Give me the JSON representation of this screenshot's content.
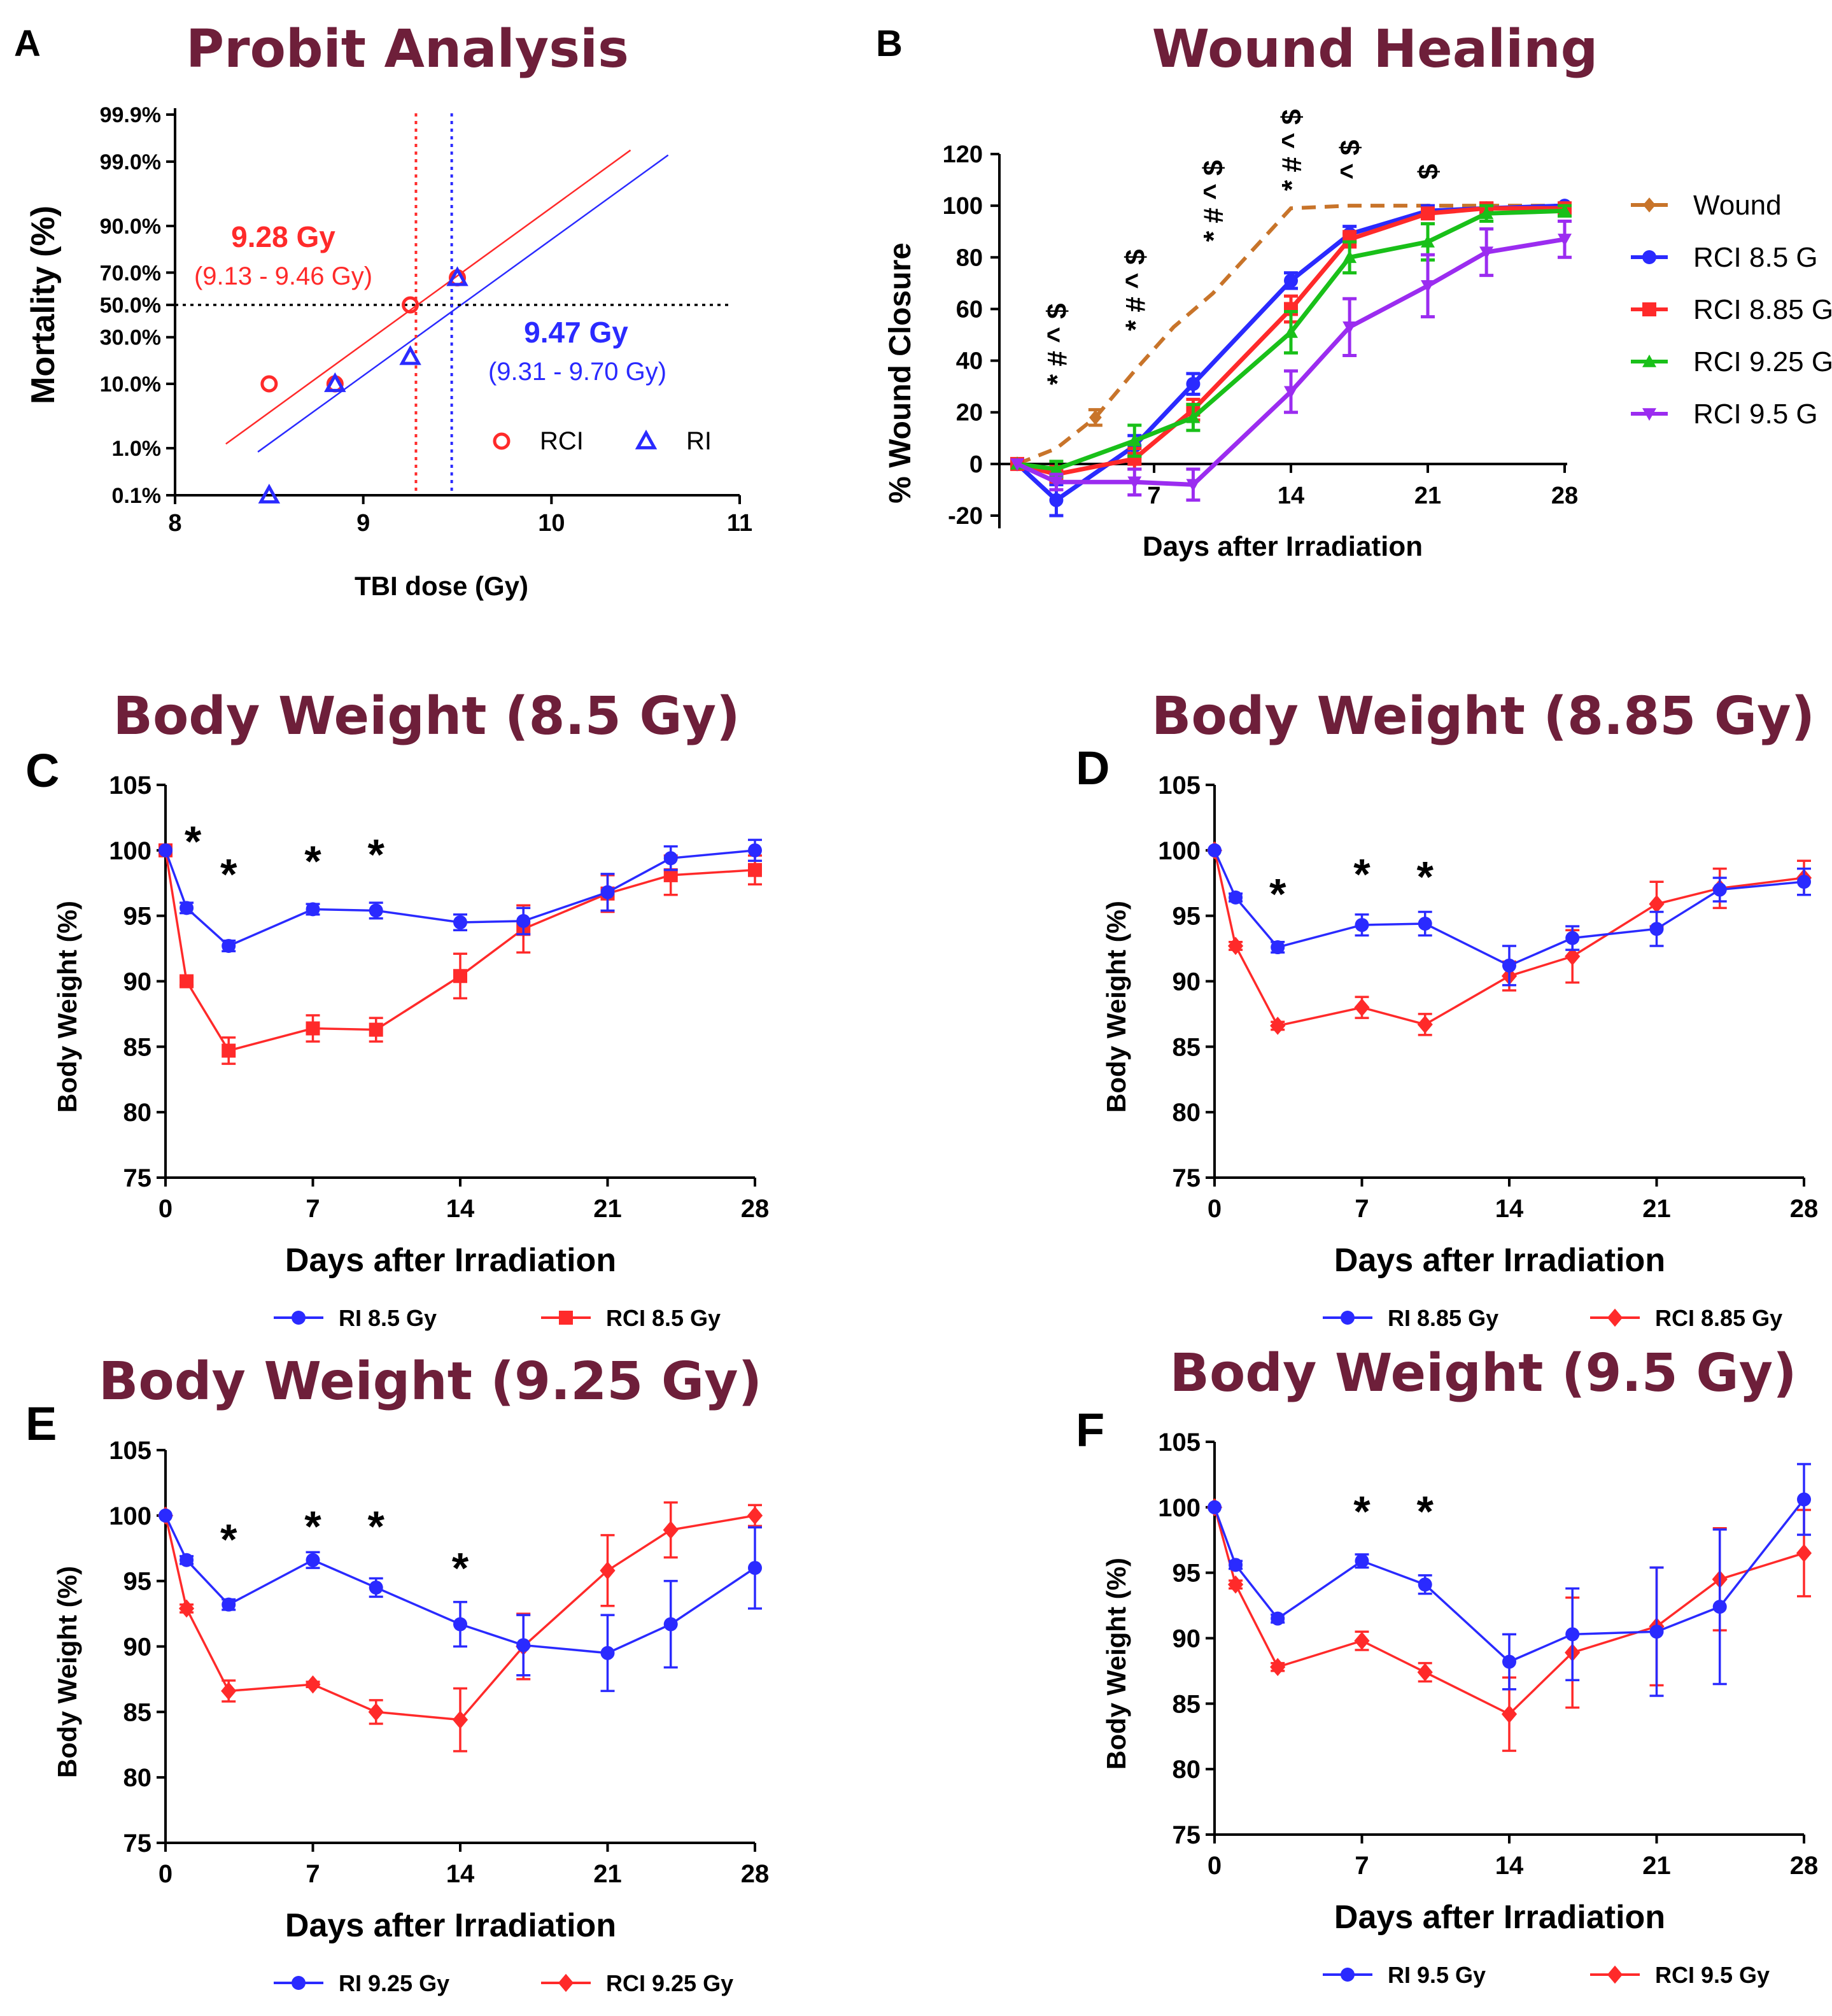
{
  "colors": {
    "title": "#6e1f3a",
    "rci": "#ff2a2a",
    "ri": "#2a2aff",
    "wound": "#c8742a",
    "rci_9_25": "#19c019",
    "rci_9_5": "#9b2cf0"
  },
  "chart_data": [
    {
      "id": "A",
      "type": "scatter",
      "panel_label": "A",
      "title": "Probit Analysis",
      "xlabel": "TBI dose (Gy)",
      "ylabel": "Mortality (%)",
      "xlim": [
        8,
        11
      ],
      "xticks": [
        "8",
        "9",
        "10",
        "11"
      ],
      "yticks": [
        "0.1%",
        "1.0%",
        "10.0%",
        "30.0%",
        "50.0%",
        "70.0%",
        "90.0%",
        "99.0%",
        "99.9%"
      ],
      "series": [
        {
          "name": "RCI",
          "x": [
            8.5,
            8.85,
            9.25,
            9.5
          ],
          "y": [
            10,
            10,
            50,
            67
          ]
        },
        {
          "name": "RI",
          "x": [
            8.5,
            8.85,
            9.25,
            9.5
          ],
          "y": [
            0.1,
            10,
            20,
            67
          ]
        }
      ],
      "fit_lines": [
        {
          "name": "RCI",
          "x": [
            8.27,
            10.42
          ],
          "y": [
            1.2,
            99.4
          ]
        },
        {
          "name": "RI",
          "x": [
            8.44,
            10.62
          ],
          "y": [
            0.85,
            99.25
          ]
        }
      ],
      "ld50": [
        {
          "name": "RCI",
          "dose": 9.28,
          "label": "9.28 Gy",
          "ci": "(9.13 - 9.46 Gy)"
        },
        {
          "name": "RI",
          "dose": 9.47,
          "label": "9.47 Gy",
          "ci": "(9.31 - 9.70 Gy)"
        }
      ],
      "legend": [
        "RCI",
        "RI"
      ]
    },
    {
      "id": "B",
      "type": "line",
      "panel_label": "B",
      "title": "Wound Healing",
      "xlabel": "Days after Irradiation",
      "ylabel": "% Wound Closure",
      "xlim": [
        0,
        28
      ],
      "ylim": [
        -20,
        120
      ],
      "xticks": [
        "7",
        "14",
        "21",
        "28"
      ],
      "yticks": [
        "-20",
        "0",
        "20",
        "40",
        "60",
        "80",
        "100",
        "120"
      ],
      "series": [
        {
          "name": "Wound",
          "x": [
            0,
            2,
            4,
            6,
            8,
            10,
            14,
            17,
            21,
            24,
            28
          ],
          "y": [
            0,
            6,
            18,
            36,
            53,
            66,
            99,
            100,
            100,
            100,
            100
          ],
          "err": [
            0,
            0,
            3,
            0,
            0,
            0,
            0,
            0,
            0,
            0,
            0
          ]
        },
        {
          "name": "RCI 8.5 Gy",
          "x": [
            0,
            2,
            6,
            9,
            14,
            17,
            21,
            24,
            28
          ],
          "y": [
            0,
            -14,
            7,
            31,
            71,
            89,
            98,
            99,
            100
          ],
          "err": [
            0,
            6,
            4,
            4,
            3,
            3,
            2,
            2,
            1
          ]
        },
        {
          "name": "RCI 8.85 Gy",
          "x": [
            0,
            2,
            6,
            9,
            14,
            17,
            21,
            24,
            28
          ],
          "y": [
            0,
            -4,
            2,
            21,
            60,
            87,
            97,
            99,
            99
          ],
          "err": [
            0,
            3,
            4,
            4,
            5,
            3,
            2,
            2,
            2
          ]
        },
        {
          "name": "RCI 9.25 Gy",
          "x": [
            0,
            2,
            6,
            9,
            14,
            17,
            21,
            24,
            28
          ],
          "y": [
            0,
            -2,
            9,
            18,
            51,
            80,
            86,
            97,
            98
          ],
          "err": [
            0,
            3,
            6,
            5,
            8,
            6,
            7,
            3,
            2
          ]
        },
        {
          "name": "RCI 9.5 Gy",
          "x": [
            0,
            2,
            6,
            9,
            14,
            17,
            21,
            24,
            28
          ],
          "y": [
            0,
            -7,
            -7,
            -8,
            28,
            53,
            69,
            82,
            87
          ],
          "err": [
            0,
            3,
            5,
            6,
            8,
            11,
            12,
            9,
            7
          ]
        }
      ],
      "annotations": [
        {
          "x": 2,
          "text": "* # ^ $"
        },
        {
          "x": 6,
          "text": "* # ^ $"
        },
        {
          "x": 10,
          "text": "* # ^ $"
        },
        {
          "x": 14,
          "text": "* # ^ $"
        },
        {
          "x": 17,
          "text": "^ $"
        },
        {
          "x": 21,
          "text": "$"
        }
      ],
      "legend_labels": [
        "Wound",
        "RCI 8.5 G",
        "RCI 8.85 G",
        "RCI 9.25 G",
        "RCI 9.5 G"
      ]
    },
    {
      "id": "C",
      "type": "line",
      "panel_label": "C",
      "title": "Body Weight (8.5 Gy)",
      "xlabel": "Days after Irradiation",
      "ylabel": "Body Weight (%)",
      "xlim": [
        0,
        28
      ],
      "ylim": [
        75,
        105
      ],
      "xticks": [
        "0",
        "7",
        "14",
        "21",
        "28"
      ],
      "yticks": [
        "75",
        "80",
        "85",
        "90",
        "95",
        "100",
        "105"
      ],
      "x": [
        0,
        1,
        3,
        7,
        10,
        14,
        17,
        21,
        24,
        28
      ],
      "series": [
        {
          "name": "RI 8.5 Gy",
          "y": [
            100,
            95.6,
            92.7,
            95.5,
            95.4,
            94.5,
            94.6,
            96.8,
            99.4,
            100
          ],
          "err": [
            0,
            0.4,
            0.4,
            0.4,
            0.6,
            0.6,
            1.0,
            1.4,
            0.9,
            0.8
          ]
        },
        {
          "name": "RCI 8.5 Gy",
          "y": [
            100,
            90,
            84.7,
            86.4,
            86.3,
            90.4,
            94,
            96.7,
            98.1,
            98.5
          ],
          "err": [
            0,
            0.3,
            1.0,
            1.0,
            0.9,
            1.7,
            1.8,
            1.4,
            1.5,
            1.1
          ]
        }
      ],
      "markers": [
        "circle",
        "square"
      ],
      "star_days": [
        1,
        3,
        7,
        10
      ],
      "star_text": "*"
    },
    {
      "id": "D",
      "type": "line",
      "panel_label": "D",
      "title": "Body Weight (8.85 Gy)",
      "xlabel": "Days after Irradiation",
      "ylabel": "Body Weight (%)",
      "xlim": [
        0,
        28
      ],
      "ylim": [
        75,
        105
      ],
      "xticks": [
        "0",
        "7",
        "14",
        "21",
        "28"
      ],
      "yticks": [
        "75",
        "80",
        "85",
        "90",
        "95",
        "100",
        "105"
      ],
      "x": [
        0,
        1,
        3,
        7,
        10,
        14,
        17,
        21,
        24,
        28
      ],
      "series": [
        {
          "name": "RI 8.85 Gy",
          "y": [
            100,
            96.4,
            92.6,
            94.3,
            94.4,
            91.2,
            93.3,
            94,
            97,
            97.6
          ],
          "err": [
            0,
            0.3,
            0.4,
            0.8,
            0.9,
            1.5,
            0.9,
            1.3,
            0.9,
            1.0
          ]
        },
        {
          "name": "RCI 8.85 Gy",
          "y": [
            100,
            92.7,
            86.6,
            88,
            86.7,
            90.4,
            91.9,
            95.9,
            97.1,
            97.9
          ],
          "err": [
            0,
            0.3,
            0.3,
            0.8,
            0.8,
            1.1,
            2.0,
            1.7,
            1.5,
            1.3
          ]
        }
      ],
      "markers": [
        "circle",
        "diamond"
      ],
      "star_days": [
        3,
        7,
        10
      ],
      "star_text": "*"
    },
    {
      "id": "E",
      "type": "line",
      "panel_label": "E",
      "title": "Body Weight (9.25 Gy)",
      "xlabel": "Days after Irradiation",
      "ylabel": "Body Weight (%)",
      "xlim": [
        0,
        28
      ],
      "ylim": [
        75,
        105
      ],
      "xticks": [
        "0",
        "7",
        "14",
        "21",
        "28"
      ],
      "yticks": [
        "75",
        "80",
        "85",
        "90",
        "95",
        "100",
        "105"
      ],
      "x": [
        0,
        1,
        3,
        7,
        10,
        14,
        17,
        21,
        24,
        28
      ],
      "series": [
        {
          "name": "RI 9.25 Gy",
          "y": [
            100,
            96.6,
            93.2,
            96.6,
            94.5,
            91.7,
            90.1,
            89.5,
            91.7,
            96
          ],
          "err": [
            0,
            0.3,
            0.4,
            0.6,
            0.7,
            1.7,
            2.3,
            2.9,
            3.3,
            3.1
          ]
        },
        {
          "name": "RCI 9.25 Gy",
          "y": [
            100,
            92.9,
            86.6,
            87.1,
            85,
            84.4,
            90,
            95.8,
            98.9,
            100
          ],
          "err": [
            0,
            0.3,
            0.8,
            0.2,
            0.9,
            2.4,
            2.5,
            2.7,
            2.1,
            0.8
          ]
        }
      ],
      "markers": [
        "circle",
        "diamond"
      ],
      "star_days": [
        3,
        7,
        10,
        14
      ],
      "star_text": "*"
    },
    {
      "id": "F",
      "type": "line",
      "panel_label": "F",
      "title": "Body Weight (9.5 Gy)",
      "xlabel": "Days after Irradiation",
      "ylabel": "Body Weight (%)",
      "xlim": [
        0,
        28
      ],
      "ylim": [
        75,
        105
      ],
      "xticks": [
        "0",
        "7",
        "14",
        "21",
        "28"
      ],
      "yticks": [
        "75",
        "80",
        "85",
        "90",
        "95",
        "100",
        "105"
      ],
      "x": [
        0,
        1,
        3,
        7,
        10,
        14,
        17,
        21,
        24,
        28
      ],
      "series": [
        {
          "name": "RI 9.5 Gy",
          "y": [
            100,
            95.6,
            91.5,
            95.9,
            94.1,
            88.2,
            90.3,
            90.5,
            92.4,
            100.6
          ],
          "err": [
            0,
            0.3,
            0.3,
            0.5,
            0.7,
            2.1,
            3.5,
            4.9,
            5.9,
            2.7
          ]
        },
        {
          "name": "RCI 9.5 Gy",
          "y": [
            100,
            94.1,
            87.8,
            89.8,
            87.4,
            84.2,
            88.9,
            90.9,
            94.5,
            96.5
          ],
          "err": [
            0,
            0.3,
            0.3,
            0.7,
            0.7,
            2.8,
            4.2,
            4.5,
            3.9,
            3.3
          ]
        }
      ],
      "markers": [
        "circle",
        "diamond"
      ],
      "star_days": [
        7,
        10
      ],
      "star_text": "*"
    }
  ]
}
